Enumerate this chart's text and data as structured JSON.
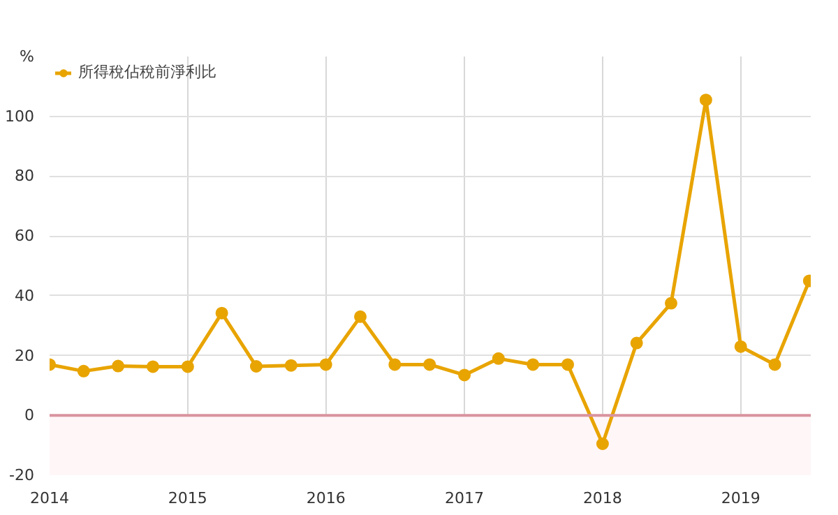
{
  "chart_data": {
    "type": "line",
    "x": [
      "2014-01",
      "2014-04",
      "2014-07",
      "2014-10",
      "2015-01",
      "2015-04",
      "2015-07",
      "2015-10",
      "2016-01",
      "2016-04",
      "2016-07",
      "2016-10",
      "2017-01",
      "2017-04",
      "2017-07",
      "2017-10",
      "2018-01",
      "2018-04",
      "2018-07",
      "2018-10",
      "2019-01",
      "2019-04",
      "2019-07"
    ],
    "series": [
      {
        "name": "所得稅佔稅前淨利比",
        "color": "#e8a400",
        "values": [
          17,
          14.8,
          16.5,
          16.3,
          16.3,
          34.2,
          16.4,
          16.7,
          17,
          33,
          17,
          17,
          13.5,
          19,
          17,
          17,
          -9.5,
          24.2,
          37.5,
          105.5,
          23,
          17,
          45
        ]
      }
    ],
    "xlim": [
      "2014-01-01",
      "2019-07-05"
    ],
    "xticks": [
      {
        "value": "2014-01-01",
        "label": "2014"
      },
      {
        "value": "2015-01-01",
        "label": "2015"
      },
      {
        "value": "2016-01-01",
        "label": "2016"
      },
      {
        "value": "2017-01-01",
        "label": "2017"
      },
      {
        "value": "2018-01-01",
        "label": "2018"
      },
      {
        "value": "2019-01-01",
        "label": "2019"
      }
    ],
    "ylim": [
      -20,
      120
    ],
    "yticks": [
      -20,
      0,
      20,
      40,
      60,
      80,
      100,
      {
        "value": 120,
        "label": "%"
      }
    ],
    "ref_lines": [
      {
        "axis": "y",
        "value": 0,
        "color": "#d9959f"
      }
    ],
    "bands": [
      {
        "axis": "y",
        "from": -20,
        "to": 0,
        "color": "#fff6f8"
      }
    ],
    "grid": true,
    "legend": "top left",
    "marker": "circle",
    "line_style": "solid"
  }
}
